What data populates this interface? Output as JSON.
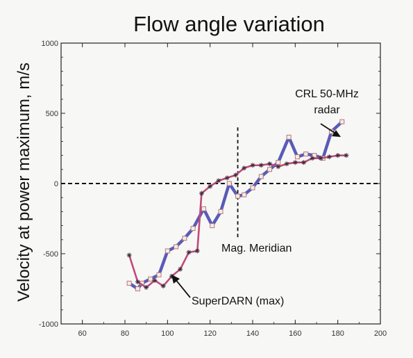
{
  "chart_data": {
    "type": "line",
    "title": "Flow angle variation",
    "xlabel": "",
    "ylabel": "Velocity at power maximum, m/s",
    "xlim": [
      50,
      200
    ],
    "ylim": [
      -1000,
      1000
    ],
    "xticks": [
      "60",
      "80",
      "100",
      "120",
      "140",
      "160",
      "180",
      "200"
    ],
    "yticks": [
      "1000",
      "500",
      "0",
      "-500",
      "-1000"
    ],
    "grid": false,
    "series": [
      {
        "name": "CRL 50-MHz radar",
        "color": "#5a5ab8",
        "marker": "square",
        "x": [
          82,
          86,
          88,
          92,
          96,
          100,
          104,
          108,
          112,
          117,
          121,
          125,
          129,
          133,
          136,
          140,
          144,
          148,
          152,
          157,
          161,
          165,
          169,
          173,
          177,
          182
        ],
        "y": [
          -710,
          -750,
          -710,
          -680,
          -650,
          -480,
          -450,
          -390,
          -320,
          -180,
          -300,
          -200,
          0,
          -90,
          -80,
          -30,
          50,
          100,
          150,
          330,
          190,
          210,
          200,
          180,
          370,
          440
        ]
      },
      {
        "name": "SuperDARN (max)",
        "color": "#c04a7a",
        "marker": "star",
        "x": [
          82,
          86,
          90,
          94,
          98,
          102,
          106,
          110,
          114,
          116,
          120,
          124,
          128,
          132,
          136,
          140,
          144,
          148,
          152,
          156,
          160,
          164,
          168,
          172,
          176,
          180,
          184
        ],
        "y": [
          -510,
          -700,
          -740,
          -690,
          -730,
          -660,
          -610,
          -490,
          -480,
          -70,
          -20,
          20,
          40,
          60,
          110,
          130,
          130,
          140,
          120,
          140,
          150,
          150,
          180,
          180,
          190,
          200,
          200
        ]
      }
    ],
    "reference_lines": [
      {
        "orientation": "horizontal",
        "value": 0,
        "style": "dashed"
      },
      {
        "orientation": "vertical",
        "value": 133,
        "range": [
          -400,
          400
        ],
        "style": "dashed"
      }
    ],
    "annotations": {
      "crl_line1": "CRL 50-MHz",
      "crl_line2": "radar",
      "meridian": "Mag. Meridian",
      "superdarn": "SuperDARN (max)"
    }
  },
  "colors": {
    "axis": "#222222",
    "background": "#f7f7f5"
  }
}
